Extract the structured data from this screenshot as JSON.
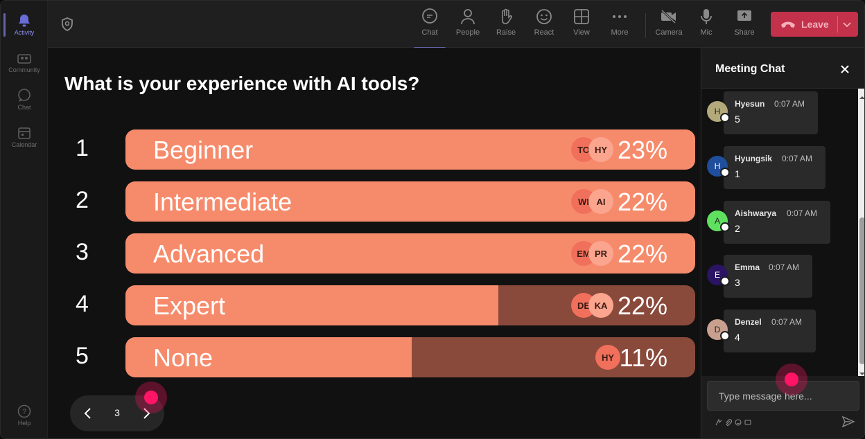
{
  "rail": {
    "items": [
      {
        "label": "Activity",
        "icon": "bell-icon",
        "active": true
      },
      {
        "label": "Community",
        "icon": "community-icon",
        "active": false
      },
      {
        "label": "Chat",
        "icon": "chat-icon",
        "active": false
      },
      {
        "label": "Calendar",
        "icon": "calendar-icon",
        "active": false
      }
    ],
    "help_label": "Help"
  },
  "toolbar": {
    "chat": "Chat",
    "people": "People",
    "raise": "Raise",
    "react": "React",
    "view": "View",
    "more": "More",
    "camera": "Camera",
    "mic": "Mic",
    "share": "Share",
    "leave": "Leave",
    "leave_color": "#c4314b"
  },
  "poll": {
    "question": "What is your experience with AI tools?",
    "options": [
      {
        "number": "1",
        "label": "Beginner",
        "percent": "23%",
        "fill_fraction": 1.0,
        "avatars": [
          "TO",
          "HY"
        ]
      },
      {
        "number": "2",
        "label": "Intermediate",
        "percent": "22%",
        "fill_fraction": 1.0,
        "avatars": [
          "WI",
          "AI"
        ]
      },
      {
        "number": "3",
        "label": "Advanced",
        "percent": "22%",
        "fill_fraction": 1.0,
        "avatars": [
          "EM",
          "PR"
        ]
      },
      {
        "number": "4",
        "label": "Expert",
        "percent": "22%",
        "fill_fraction": 0.654,
        "avatars": [
          "DE",
          "KA"
        ]
      },
      {
        "number": "5",
        "label": "None",
        "percent": "11%",
        "fill_fraction": 0.502,
        "avatars": [
          "HY"
        ]
      }
    ],
    "fill_color": "#f68b6c",
    "track_color": "#8a4a3b"
  },
  "pager": {
    "page": "3"
  },
  "chat": {
    "title": "Meeting Chat",
    "messages": [
      {
        "name": "Hyesun",
        "initial": "H",
        "time": "0:07 AM",
        "text": "5",
        "avatar_color": "#b4a97a"
      },
      {
        "name": "Hyungsik",
        "initial": "H",
        "time": "0:07 AM",
        "text": "1",
        "avatar_color": "#1f4e9c"
      },
      {
        "name": "Aishwarya",
        "initial": "A",
        "time": "0:07 AM",
        "text": "2",
        "avatar_color": "#5fe05f"
      },
      {
        "name": "Emma",
        "initial": "E",
        "time": "0:07 AM",
        "text": "3",
        "avatar_color": "#2a1463"
      },
      {
        "name": "Denzel",
        "initial": "D",
        "time": "0:07 AM",
        "text": "4",
        "avatar_color": "#c9a08e"
      }
    ],
    "input_placeholder": "Type message here..."
  }
}
